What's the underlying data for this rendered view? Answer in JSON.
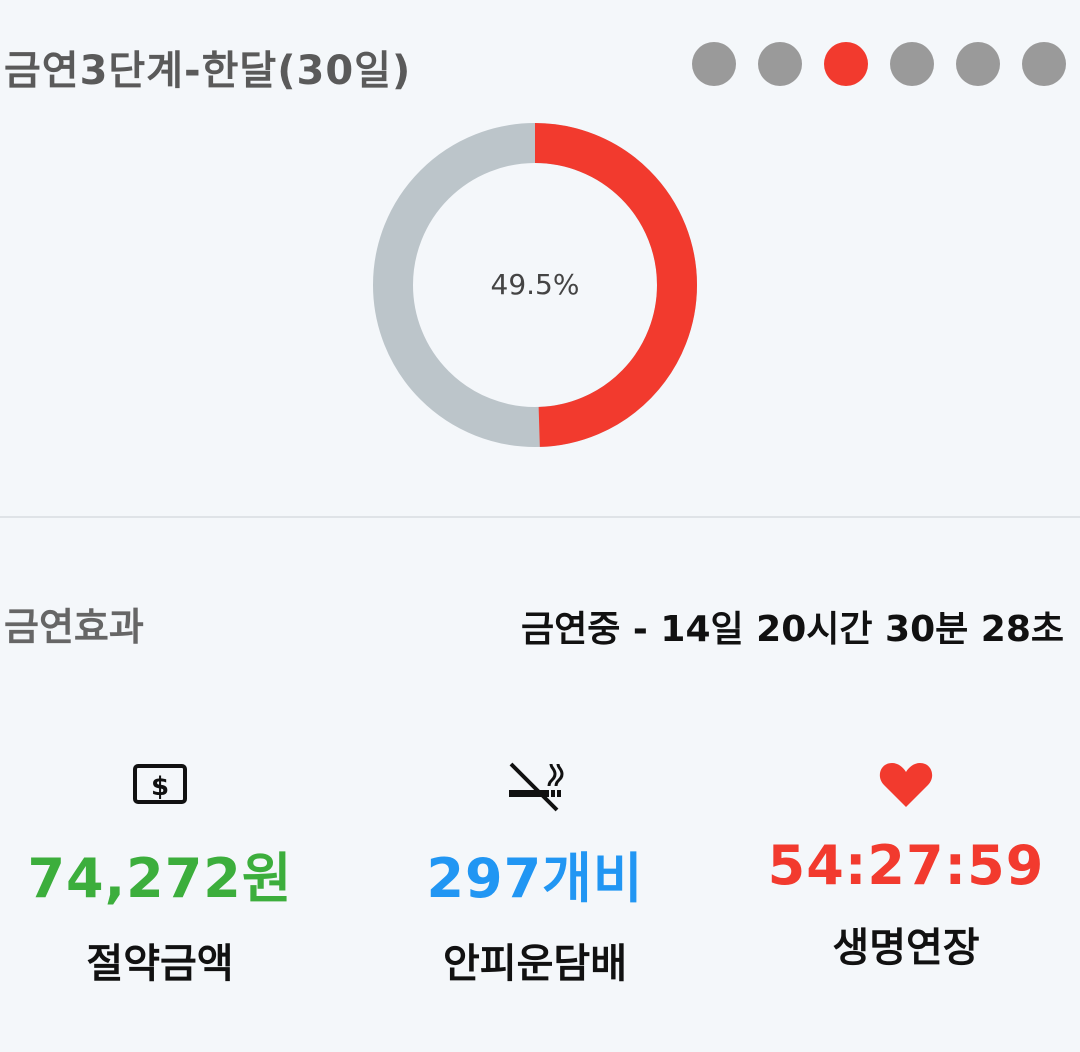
{
  "stage": {
    "title": "금연3단계-한달(30일)",
    "steps": 6,
    "current_step_index": 2
  },
  "progress": {
    "percent_label": "49.5%",
    "fraction": 0.495,
    "filled_color": "#f23a2e",
    "track_color": "#bcc5ca"
  },
  "effects": {
    "title": "금연효과",
    "elapsed_text": "금연중 - 14일 20시간 30분 28초"
  },
  "stats": {
    "money": {
      "icon": "dollar-bill-icon",
      "value": "74,272원",
      "label": "절약금액",
      "color": "#3cae3c"
    },
    "cigarettes": {
      "icon": "no-smoking-icon",
      "value": "297개비",
      "label": "안피운담배",
      "color": "#2196f3"
    },
    "life": {
      "icon": "heart-icon",
      "value": "54:27:59",
      "label": "생명연장",
      "color": "#f23a2e"
    }
  }
}
